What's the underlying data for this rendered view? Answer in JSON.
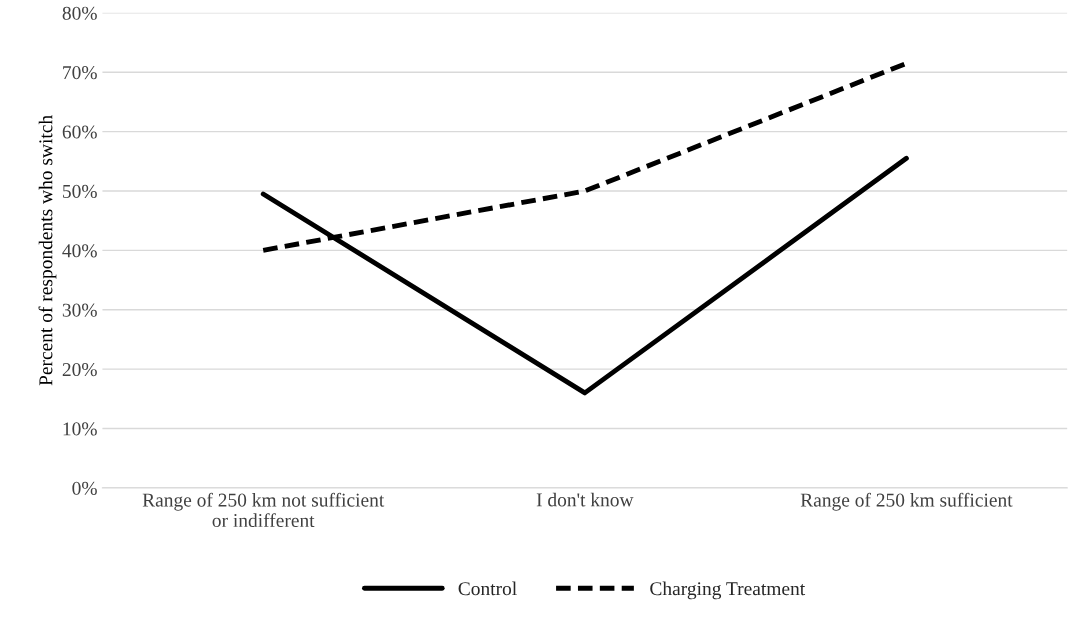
{
  "chart_data": {
    "type": "line",
    "ylabel": "Percent of respondents who switch",
    "categories": [
      "Range of 250 km not sufficient\nor indifferent",
      "I don't know",
      "Range of 250 km sufficient"
    ],
    "series": [
      {
        "name": "Control",
        "color": "#000000",
        "line_style": "solid",
        "values": [
          49.5,
          16,
          55.5
        ]
      },
      {
        "name": "Charging Treatment",
        "color": "#000000",
        "line_style": "dashed",
        "values": [
          40,
          50,
          71.5
        ]
      }
    ],
    "ylim": [
      0,
      80
    ],
    "yticks": [
      {
        "value": 0,
        "label": "0%"
      },
      {
        "value": 10,
        "label": "10%"
      },
      {
        "value": 20,
        "label": "20%"
      },
      {
        "value": 30,
        "label": "30%"
      },
      {
        "value": 40,
        "label": "40%"
      },
      {
        "value": 50,
        "label": "50%"
      },
      {
        "value": 60,
        "label": "60%"
      },
      {
        "value": 70,
        "label": "70%"
      },
      {
        "value": 80,
        "label": "80%"
      }
    ],
    "grid": "y",
    "legend": "bottom",
    "marker": "none"
  }
}
